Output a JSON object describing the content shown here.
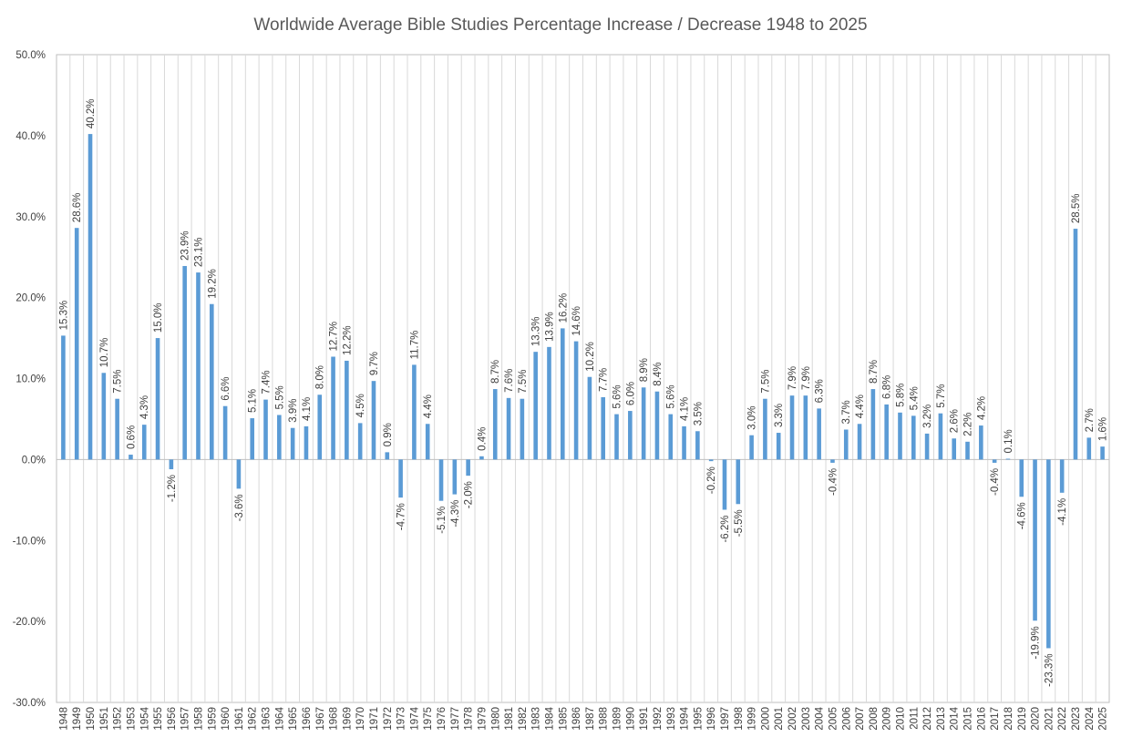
{
  "chart_data": {
    "type": "bar",
    "title": "Worldwide Average Bible Studies Percentage Increase / Decrease 1948 to 2025",
    "xlabel": "",
    "ylabel": "",
    "ylim": [
      -30,
      50
    ],
    "ytick_step": 10,
    "ytick_labels": [
      "-30.0%",
      "-20.0%",
      "-10.0%",
      "0.0%",
      "10.0%",
      "20.0%",
      "30.0%",
      "40.0%",
      "50.0%"
    ],
    "grid": "vertical",
    "bar_color": "#5b9bd5",
    "categories": [
      "1948",
      "1949",
      "1950",
      "1951",
      "1952",
      "1953",
      "1954",
      "1955",
      "1956",
      "1957",
      "1958",
      "1959",
      "1960",
      "1961",
      "1962",
      "1963",
      "1964",
      "1965",
      "1966",
      "1967",
      "1968",
      "1969",
      "1970",
      "1971",
      "1972",
      "1973",
      "1974",
      "1975",
      "1976",
      "1977",
      "1978",
      "1979",
      "1980",
      "1981",
      "1982",
      "1983",
      "1984",
      "1985",
      "1986",
      "1987",
      "1988",
      "1989",
      "1990",
      "1991",
      "1992",
      "1993",
      "1994",
      "1995",
      "1996",
      "1997",
      "1998",
      "1999",
      "2000",
      "2001",
      "2002",
      "2003",
      "2004",
      "2005",
      "2006",
      "2007",
      "2008",
      "2009",
      "2010",
      "2011",
      "2012",
      "2013",
      "2014",
      "2015",
      "2016",
      "2017",
      "2018",
      "2019",
      "2020",
      "2021",
      "2022",
      "2023",
      "2024",
      "2025"
    ],
    "values": [
      15.3,
      28.6,
      40.2,
      10.7,
      7.5,
      0.6,
      4.3,
      15.0,
      -1.2,
      23.9,
      23.1,
      19.2,
      6.6,
      -3.6,
      5.1,
      7.4,
      5.5,
      3.9,
      4.1,
      8.0,
      12.7,
      12.2,
      4.5,
      9.7,
      0.9,
      -4.7,
      11.7,
      4.4,
      -5.1,
      -4.3,
      -2.0,
      0.4,
      8.7,
      7.6,
      7.5,
      13.3,
      13.9,
      16.2,
      14.6,
      10.2,
      7.7,
      5.6,
      6.0,
      8.9,
      8.4,
      5.6,
      4.1,
      3.5,
      -0.2,
      -6.2,
      -5.5,
      3.0,
      7.5,
      3.3,
      7.9,
      7.9,
      6.3,
      -0.4,
      3.7,
      4.4,
      8.7,
      6.8,
      5.8,
      5.4,
      3.2,
      5.7,
      2.6,
      2.2,
      4.2,
      -0.4,
      0.1,
      -4.6,
      -19.9,
      -23.3,
      -4.1,
      28.5,
      2.7,
      1.6
    ],
    "labels": [
      "15.3%",
      "28.6%",
      "40.2%",
      "10.7%",
      "7.5%",
      "0.6%",
      "4.3%",
      "15.0%",
      "-1.2%",
      "23.9%",
      "23.1%",
      "19.2%",
      "6.6%",
      "-3.6%",
      "5.1%",
      "7.4%",
      "5.5%",
      "3.9%",
      "4.1%",
      "8.0%",
      "12.7%",
      "12.2%",
      "4.5%",
      "9.7%",
      "0.9%",
      "-4.7%",
      "11.7%",
      "4.4%",
      "-5.1%",
      "-4.3%",
      "-2.0%",
      "0.4%",
      "8.7%",
      "7.6%",
      "7.5%",
      "13.3%",
      "13.9%",
      "16.2%",
      "14.6%",
      "10.2%",
      "7.7%",
      "5.6%",
      "6.0%",
      "8.9%",
      "8.4%",
      "5.6%",
      "4.1%",
      "3.5%",
      "-0.2%",
      "-6.2%",
      "-5.5%",
      "3.0%",
      "7.5%",
      "3.3%",
      "7.9%",
      "7.9%",
      "6.3%",
      "-0.4%",
      "3.7%",
      "4.4%",
      "8.7%",
      "6.8%",
      "5.8%",
      "5.4%",
      "3.2%",
      "5.7%",
      "2.6%",
      "2.2%",
      "4.2%",
      "-0.4%",
      "0.1%",
      "-4.6%",
      "-19.9%",
      "-23.3%",
      "-4.1%",
      "28.5%",
      "2.7%",
      "1.6%"
    ]
  }
}
